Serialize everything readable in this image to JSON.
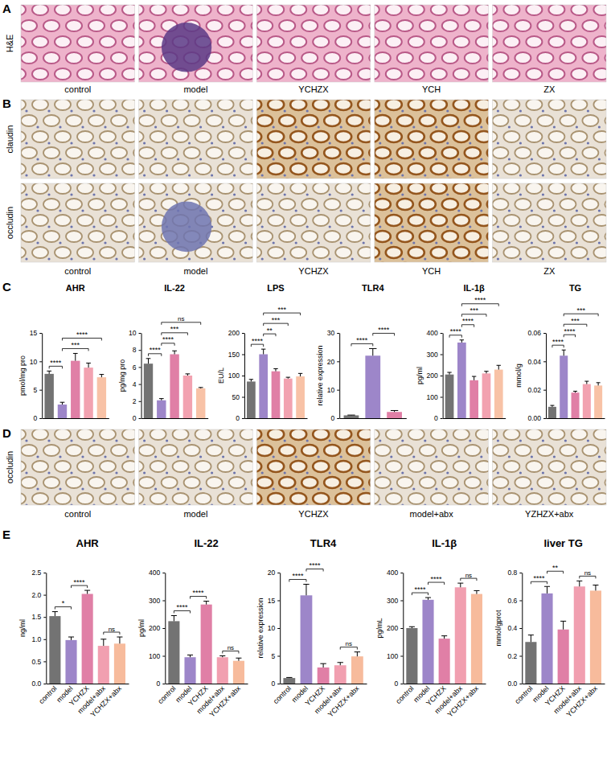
{
  "panel_labels": [
    "A",
    "B",
    "C",
    "D",
    "E"
  ],
  "image_panels": [
    {
      "row_labels": [
        "H&E"
      ],
      "column_labels": [
        "control",
        "model",
        "YCHZX",
        "YCH",
        "ZX"
      ]
    },
    {
      "row_labels": [
        "claudin",
        "occludin"
      ],
      "column_labels": [
        "control",
        "model",
        "YCHZX",
        "YCH",
        "ZX"
      ]
    },
    {
      "row_labels": [
        "occludin"
      ],
      "column_labels": [
        "control",
        "model",
        "YCHZX",
        "model+abx",
        "YZHZX+abx"
      ]
    }
  ],
  "chart_data": [
    {
      "type": "bar",
      "title": "AHR",
      "y_label": "pmol/mg pro",
      "categories": [
        null,
        null,
        null,
        null,
        null
      ],
      "values": [
        7.8,
        2.4,
        10.1,
        8.9,
        7.2
      ],
      "errors": [
        0.5,
        0.4,
        1.3,
        0.8,
        0.5
      ],
      "colors": [
        "#737373",
        "#9d86c9",
        "#e07fa6",
        "#f2a2b0",
        "#f8c2a6"
      ],
      "ylim": [
        0,
        15
      ],
      "yticks": [
        0,
        5,
        10,
        15
      ],
      "tick_labels": "y",
      "annotations": [
        {
          "from": 0,
          "to": 1,
          "text": "****"
        },
        {
          "from": 1,
          "to": 3,
          "text": "***"
        },
        {
          "from": 1,
          "to": 4,
          "text": "****"
        }
      ]
    },
    {
      "type": "bar",
      "title": "IL-22",
      "y_label": "pg/mg pro",
      "categories": [
        null,
        null,
        null,
        null,
        null
      ],
      "values": [
        6.4,
        2.1,
        7.5,
        5.0,
        3.5
      ],
      "errors": [
        0.6,
        0.2,
        0.4,
        0.2,
        0.1
      ],
      "colors": [
        "#737373",
        "#9d86c9",
        "#e07fa6",
        "#f2a2b0",
        "#f8c2a6"
      ],
      "ylim": [
        0,
        10
      ],
      "yticks": [
        0,
        2,
        4,
        6,
        8,
        10
      ],
      "tick_labels": "y",
      "annotations": [
        {
          "from": 0,
          "to": 1,
          "text": "****"
        },
        {
          "from": 1,
          "to": 2,
          "text": "****"
        },
        {
          "from": 1,
          "to": 3,
          "text": "***"
        },
        {
          "from": 1,
          "to": 4,
          "text": "ns"
        }
      ]
    },
    {
      "type": "bar",
      "title": "LPS",
      "y_label": "EU/L",
      "categories": [
        null,
        null,
        null,
        null,
        null
      ],
      "values": [
        86,
        150,
        110,
        93,
        98
      ],
      "errors": [
        5,
        12,
        6,
        3,
        7
      ],
      "colors": [
        "#737373",
        "#9d86c9",
        "#e07fa6",
        "#f2a2b0",
        "#f8c2a6"
      ],
      "ylim": [
        0,
        200
      ],
      "yticks": [
        0,
        50,
        100,
        150,
        200
      ],
      "tick_labels": "y",
      "annotations": [
        {
          "from": 0,
          "to": 1,
          "text": "****"
        },
        {
          "from": 1,
          "to": 2,
          "text": "**"
        },
        {
          "from": 1,
          "to": 3,
          "text": "***"
        },
        {
          "from": 1,
          "to": 4,
          "text": "***"
        }
      ]
    },
    {
      "type": "bar",
      "title": "TLR4",
      "y_label": "relative expression",
      "categories": [
        null,
        null,
        null
      ],
      "values": [
        1,
        22,
        2.2
      ],
      "errors": [
        0.1,
        2.5,
        0.5
      ],
      "colors": [
        "#737373",
        "#9d86c9",
        "#e07fa6"
      ],
      "ylim": [
        0,
        30
      ],
      "yticks": [
        0,
        10,
        20,
        30
      ],
      "tick_labels": "y",
      "annotations": [
        {
          "from": 0,
          "to": 1,
          "text": "****"
        },
        {
          "from": 1,
          "to": 2,
          "text": "****"
        }
      ]
    },
    {
      "type": "bar",
      "title": "IL-1β",
      "y_label": "pg/ml",
      "categories": [
        null,
        null,
        null,
        null,
        null
      ],
      "values": [
        205,
        355,
        178,
        210,
        228
      ],
      "errors": [
        10,
        12,
        18,
        10,
        20
      ],
      "colors": [
        "#737373",
        "#9d86c9",
        "#e07fa6",
        "#f2a2b0",
        "#f8c2a6"
      ],
      "ylim": [
        0,
        400
      ],
      "yticks": [
        0,
        100,
        200,
        300,
        400
      ],
      "tick_labels": "y",
      "annotations": [
        {
          "from": 0,
          "to": 1,
          "text": "****"
        },
        {
          "from": 1,
          "to": 2,
          "text": "****"
        },
        {
          "from": 1,
          "to": 3,
          "text": "***"
        },
        {
          "from": 1,
          "to": 4,
          "text": "****"
        }
      ]
    },
    {
      "type": "bar",
      "title": "TG",
      "y_label": "mmol/g",
      "categories": [
        null,
        null,
        null,
        null,
        null
      ],
      "values": [
        0.008,
        0.044,
        0.018,
        0.024,
        0.023
      ],
      "errors": [
        0.001,
        0.004,
        0.001,
        0.002,
        0.002
      ],
      "colors": [
        "#737373",
        "#9d86c9",
        "#e07fa6",
        "#f2a2b0",
        "#f8c2a6"
      ],
      "ylim": [
        0,
        0.06
      ],
      "yticks": [
        {
          "value": 0,
          "label": "0.00"
        },
        0.02,
        0.04,
        0.06
      ],
      "tick_labels": "y",
      "annotations": [
        {
          "from": 0,
          "to": 1,
          "text": "****"
        },
        {
          "from": 1,
          "to": 2,
          "text": "****"
        },
        {
          "from": 1,
          "to": 3,
          "text": "***"
        },
        {
          "from": 1,
          "to": 4,
          "text": "***"
        }
      ]
    },
    {
      "type": "bar",
      "title": "AHR",
      "y_label": "ng/ml",
      "categories": [
        "control",
        "model",
        "YCHZX",
        "model+abx",
        "YCHZX+abx"
      ],
      "values": [
        1.52,
        0.98,
        2.02,
        0.85,
        0.9
      ],
      "errors": [
        0.1,
        0.07,
        0.08,
        0.15,
        0.15
      ],
      "colors": [
        "#737373",
        "#9d86c9",
        "#e07fa6",
        "#f19fb0",
        "#f7bb9c"
      ],
      "ylim": [
        0,
        2.5
      ],
      "yticks": [
        {
          "value": 0,
          "label": "0.0"
        },
        0.5,
        {
          "value": 1,
          "label": "1.0"
        },
        1.5,
        {
          "value": 2,
          "label": "2.0"
        },
        2.5
      ],
      "annotations": [
        {
          "from": 0,
          "to": 1,
          "text": "*"
        },
        {
          "from": 1,
          "to": 2,
          "text": "****"
        },
        {
          "from": 3,
          "to": 4,
          "text": "ns"
        }
      ]
    },
    {
      "type": "bar",
      "title": "IL-22",
      "y_label": "pg/ml",
      "categories": [
        "control",
        "model",
        "YCHZX",
        "model+abx",
        "YCHZX+abx"
      ],
      "values": [
        225,
        95,
        285,
        95,
        82
      ],
      "errors": [
        20,
        8,
        12,
        5,
        10
      ],
      "colors": [
        "#737373",
        "#9d86c9",
        "#e07fa6",
        "#f19fb0",
        "#f7bb9c"
      ],
      "ylim": [
        0,
        400
      ],
      "yticks": [
        0,
        100,
        200,
        300,
        400
      ],
      "annotations": [
        {
          "from": 0,
          "to": 1,
          "text": "****"
        },
        {
          "from": 1,
          "to": 2,
          "text": "****"
        },
        {
          "from": 3,
          "to": 4,
          "text": "ns"
        }
      ]
    },
    {
      "type": "bar",
      "title": "TLR4",
      "y_label": "relative expression",
      "categories": [
        "control",
        "model",
        "YCHZX",
        "model+abx",
        "YCHZX+abx"
      ],
      "values": [
        1,
        15.9,
        2.9,
        3.3,
        4.9
      ],
      "errors": [
        0.1,
        2,
        0.7,
        0.5,
        0.8
      ],
      "colors": [
        "#737373",
        "#9d86c9",
        "#e07fa6",
        "#f19fb0",
        "#f7bb9c"
      ],
      "ylim": [
        0,
        20
      ],
      "yticks": [
        0,
        5,
        10,
        15,
        20
      ],
      "annotations": [
        {
          "from": 0,
          "to": 1,
          "text": "****"
        },
        {
          "from": 1,
          "to": 2,
          "text": "****"
        },
        {
          "from": 3,
          "to": 4,
          "text": "ns"
        }
      ]
    },
    {
      "type": "bar",
      "title": "IL-1β",
      "y_label": "pg/mL",
      "categories": [
        "control",
        "model",
        "YCHZX",
        "model+abx",
        "YCHZX+abx"
      ],
      "values": [
        200,
        302,
        162,
        347,
        323
      ],
      "errors": [
        5,
        8,
        10,
        15,
        12
      ],
      "colors": [
        "#737373",
        "#9d86c9",
        "#e07fa6",
        "#f19fb0",
        "#f7bb9c"
      ],
      "ylim": [
        0,
        400
      ],
      "yticks": [
        0,
        100,
        200,
        300,
        400
      ],
      "annotations": [
        {
          "from": 0,
          "to": 1,
          "text": "****"
        },
        {
          "from": 1,
          "to": 2,
          "text": "****"
        },
        {
          "from": 3,
          "to": 4,
          "text": "ns"
        }
      ]
    },
    {
      "type": "bar",
      "title": "liver TG",
      "y_label": "mmol/gprot",
      "categories": [
        "control",
        "model",
        "YCHZX",
        "model+abx",
        "YCHZX+abx"
      ],
      "values": [
        0.3,
        0.65,
        0.39,
        0.7,
        0.67
      ],
      "errors": [
        0.05,
        0.05,
        0.06,
        0.04,
        0.04
      ],
      "colors": [
        "#737373",
        "#9d86c9",
        "#e07fa6",
        "#f19fb0",
        "#f7bb9c"
      ],
      "ylim": [
        0,
        0.8
      ],
      "yticks": [
        {
          "value": 0,
          "label": "0.0"
        },
        0.2,
        0.4,
        0.6,
        0.8
      ],
      "annotations": [
        {
          "from": 0,
          "to": 1,
          "text": "****"
        },
        {
          "from": 1,
          "to": 2,
          "text": "**"
        },
        {
          "from": 3,
          "to": 4,
          "text": "ns"
        }
      ]
    }
  ]
}
